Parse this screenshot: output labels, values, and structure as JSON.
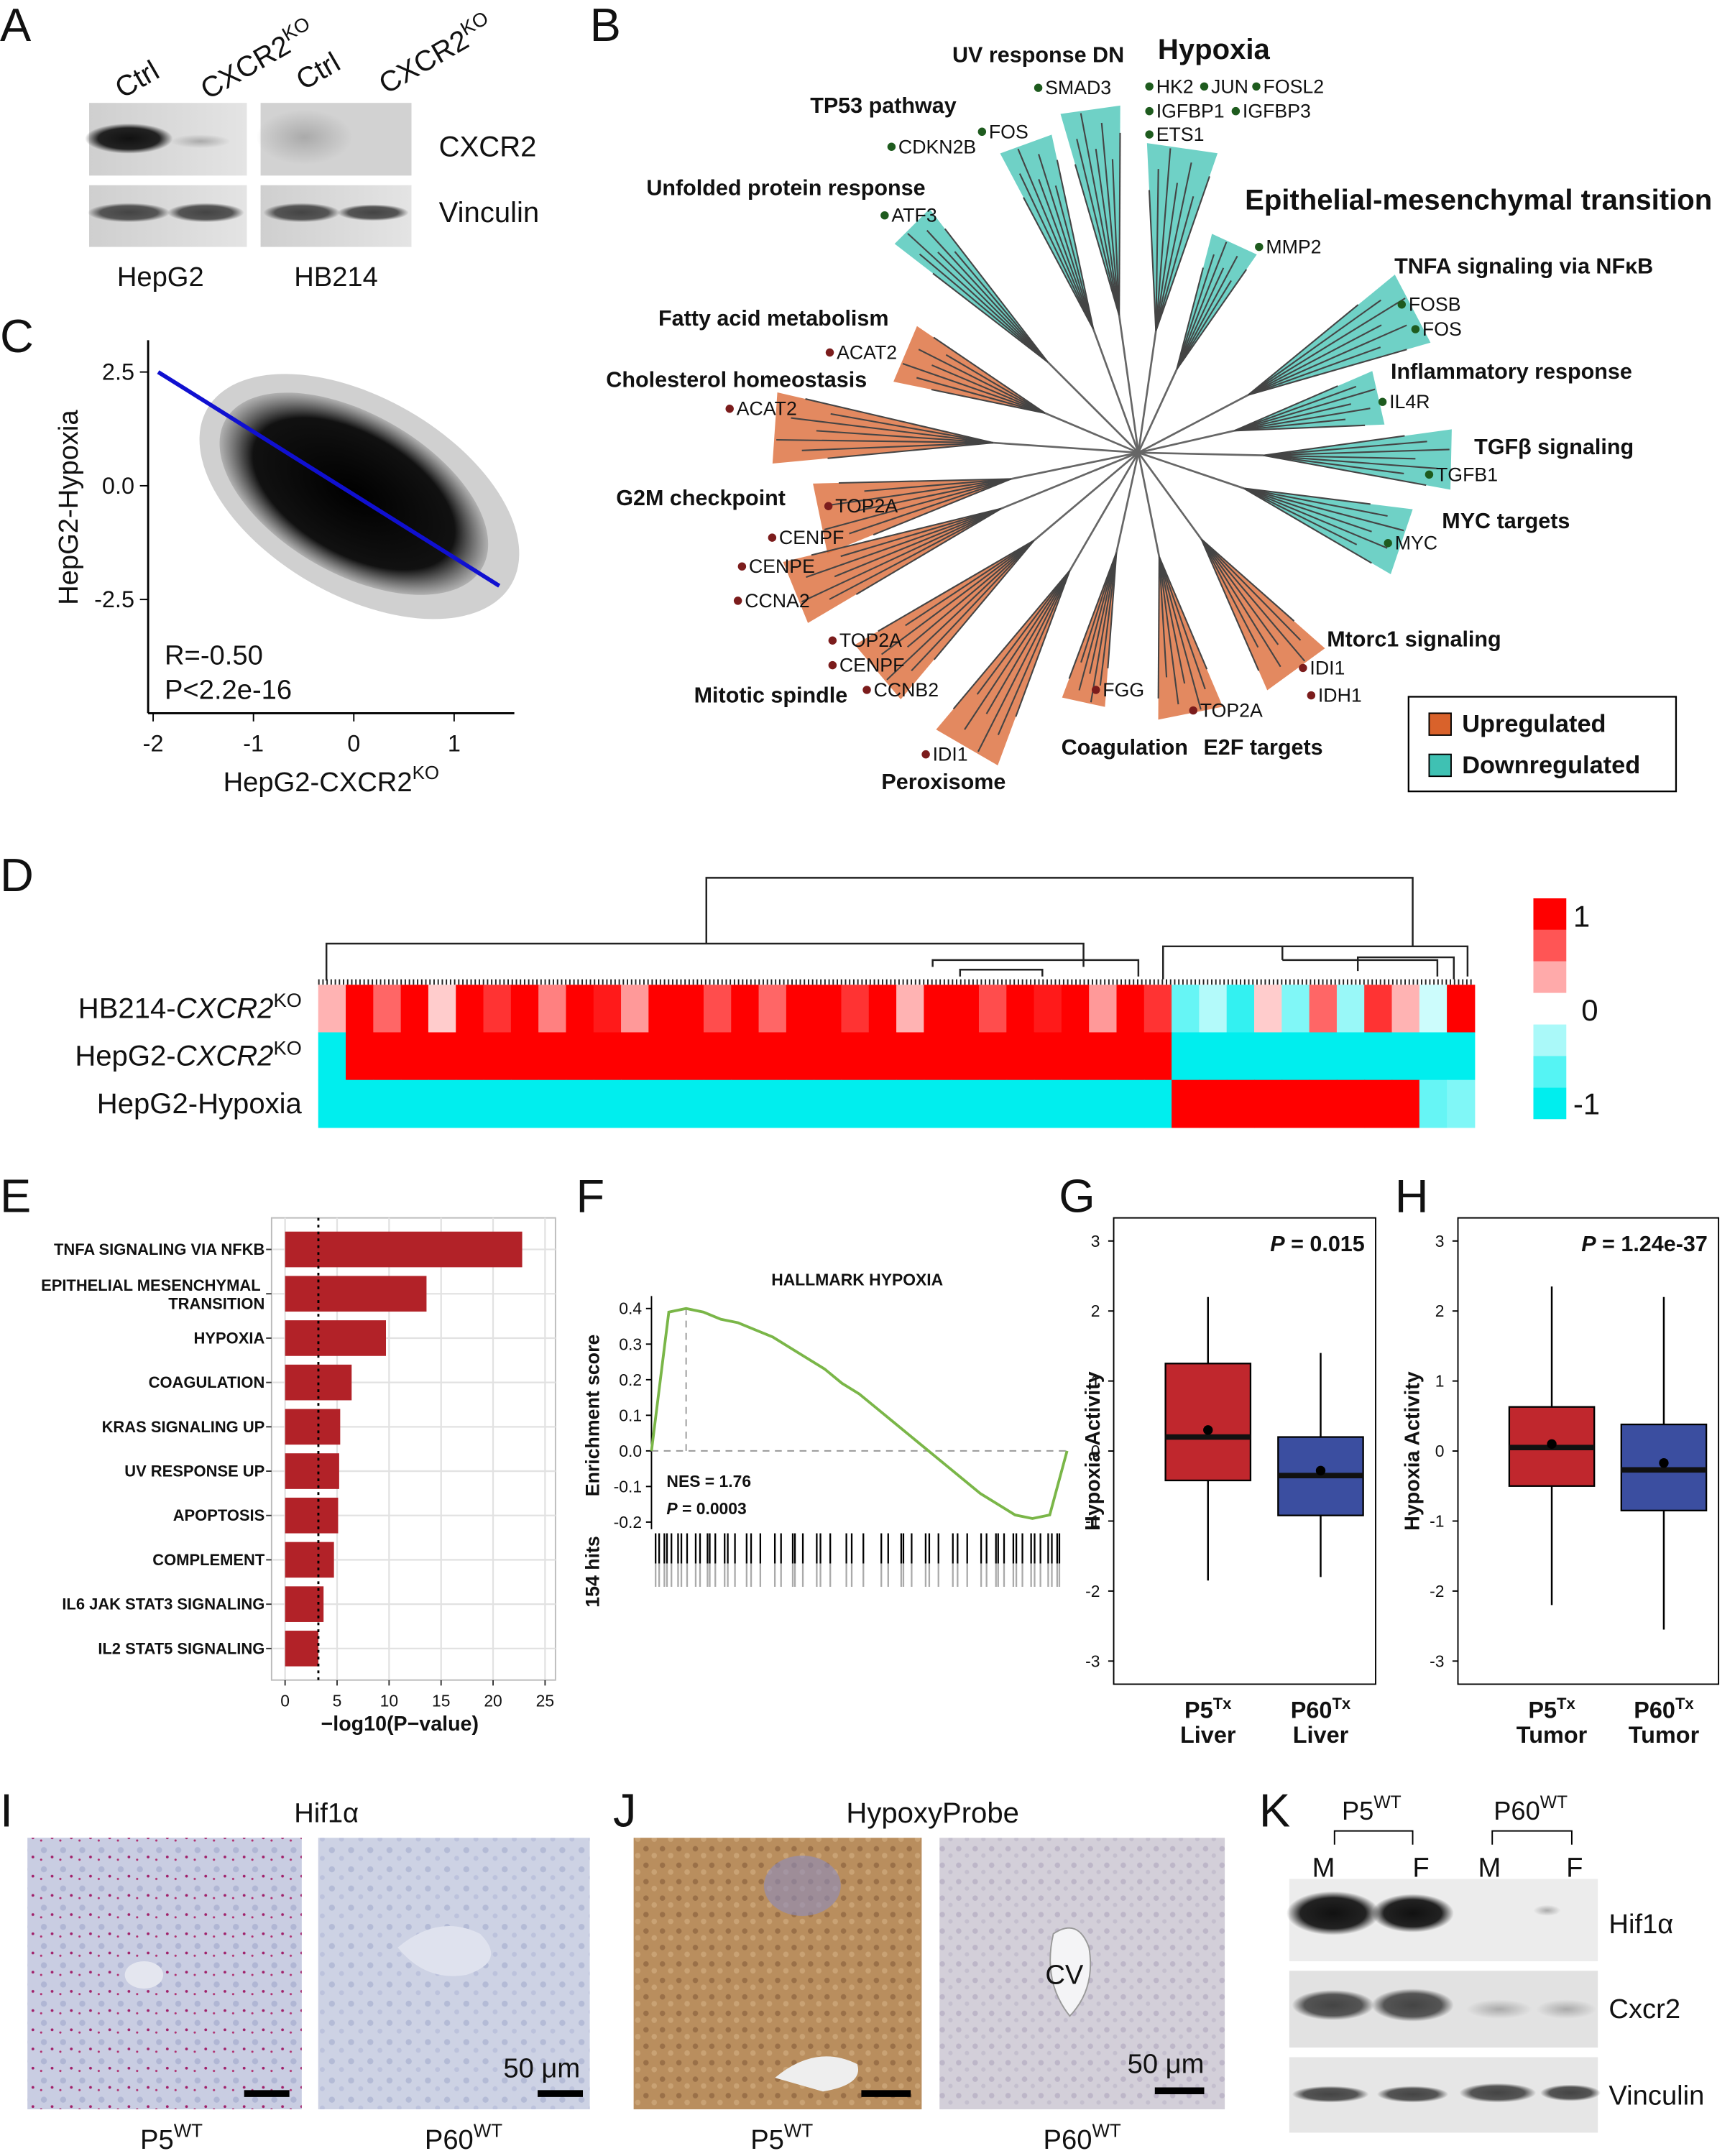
{
  "panels": {
    "A": {
      "label": "A",
      "lanes": [
        {
          "base": "Ctrl"
        },
        {
          "base": "CXCR2",
          "sup": "KO"
        },
        {
          "base": "Ctrl"
        },
        {
          "base": "CXCR2",
          "sup": "KO"
        }
      ],
      "proteins": [
        "CXCR2",
        "Vinculin"
      ],
      "cell_lines": [
        "HepG2",
        "HB214"
      ]
    },
    "B": {
      "label": "B",
      "downregulated_terms": [
        "UV response DN",
        "Hypoxia",
        "TP53 pathway",
        "Unfolded protein response",
        "Epithelial-mesenchymal transition",
        "TNFA signaling via NFκB",
        "Inflammatory response",
        "TGFβ signaling",
        "MYC targets"
      ],
      "upregulated_terms": [
        "Fatty acid metabolism",
        "Cholesterol homeostasis",
        "G2M checkpoint",
        "Mitotic spindle",
        "Peroxisome",
        "Coagulation",
        "E2F targets",
        "Mtorc1 signaling"
      ],
      "downregulated_genes": [
        "SMAD3",
        "FOS",
        "CDKN2B",
        "ATF3",
        "HK2",
        "JUN",
        "FOSL2",
        "IGFBP1",
        "IGFBP3",
        "ETS1",
        "MMP2",
        "FOSB",
        "FOS",
        "IL4R",
        "TGFB1",
        "MYC"
      ],
      "upregulated_genes": [
        "ACAT2",
        "ACAT2",
        "TOP2A",
        "CENPF",
        "CENPE",
        "CCNA2",
        "TOP2A",
        "CENPF",
        "CCNB2",
        "IDI1",
        "FGG",
        "TOP2A",
        "IDI1",
        "IDH1"
      ],
      "legend": [
        {
          "name": "Upregulated",
          "color": "#d9622b"
        },
        {
          "name": "Downregulated",
          "color": "#3fc1b3"
        }
      ]
    },
    "I": {
      "label": "I",
      "stain": "Hif1α",
      "samples": [
        {
          "base": "P5",
          "sup": "WT"
        },
        {
          "base": "P60",
          "sup": "WT"
        }
      ],
      "scale": "50 μm"
    },
    "J": {
      "label": "J",
      "stain": "HypoxyProbe",
      "structure": "CV",
      "samples": [
        {
          "base": "P5",
          "sup": "WT"
        },
        {
          "base": "P60",
          "sup": "WT"
        }
      ],
      "scale": "50 μm"
    },
    "K": {
      "label": "K",
      "groups": [
        {
          "base": "P5",
          "sup": "WT"
        },
        {
          "base": "P60",
          "sup": "WT"
        }
      ],
      "lanes": [
        "M",
        "F",
        "M",
        "F"
      ],
      "proteins": [
        "Hif1α",
        "Cxcr2",
        "Vinculin"
      ]
    }
  },
  "chart_data": [
    {
      "label": "C",
      "type": "scatter",
      "ylabel": "HepG2-Hypoxia",
      "xlabel": {
        "base": "HepG2-CXCR2",
        "sup": "KO"
      },
      "xlim": [
        -2.05,
        1.6
      ],
      "ylim": [
        -5,
        3.2
      ],
      "xticks": [
        -2,
        -1,
        0,
        1
      ],
      "yticks": [
        2.5,
        {
          "value": 0,
          "label": "0.0"
        },
        -2.5
      ],
      "annotations": [
        "R=-0.50",
        "P<2.2e-16"
      ],
      "fit_line": {
        "x": [
          -1.95,
          1.45
        ],
        "y": [
          2.5,
          -2.2
        ],
        "color": "#1010d0"
      }
    },
    {
      "label": "D",
      "type": "heatmap",
      "rows": [
        {
          "base": "HB214-",
          "italic": "CXCR2",
          "sup": "KO"
        },
        {
          "base": "HepG2-",
          "italic": "CXCR2",
          "sup": "KO"
        },
        {
          "base": "HepG2-Hypoxia"
        }
      ],
      "values": [
        [
          0.3,
          1,
          0.6,
          1,
          0.2,
          1,
          0.8,
          1,
          0.5,
          1,
          0.9,
          0.4,
          1,
          1,
          0.7,
          1,
          0.6,
          1,
          1,
          0.8,
          1,
          0.3,
          1,
          1,
          0.7,
          1,
          0.9,
          1,
          0.4,
          1,
          0.8,
          -0.6,
          -0.3,
          -0.8,
          0.2,
          -0.5,
          0.6,
          -0.4,
          0.8,
          0.3,
          -0.2,
          1
        ],
        [
          -1,
          1,
          1,
          1,
          1,
          1,
          1,
          1,
          1,
          1,
          1,
          1,
          1,
          1,
          1,
          1,
          1,
          1,
          1,
          1,
          1,
          1,
          1,
          1,
          1,
          1,
          1,
          1,
          1,
          1,
          1,
          -1,
          -1,
          -1,
          -1,
          -1,
          -1,
          -1,
          -1,
          -1,
          -1,
          -1
        ],
        [
          -1,
          -1,
          -1,
          -1,
          -1,
          -1,
          -1,
          -1,
          -1,
          -1,
          -1,
          -1,
          -1,
          -1,
          -1,
          -1,
          -1,
          -1,
          -1,
          -1,
          -1,
          -1,
          -1,
          -1,
          -1,
          -1,
          -1,
          -1,
          -1,
          -1,
          -1,
          1,
          1,
          1,
          1,
          1,
          1,
          1,
          1,
          1,
          -0.6,
          -0.5
        ]
      ],
      "zlim": [
        -1,
        1
      ],
      "colorbar_ticks": [
        1,
        0,
        -1
      ],
      "colors": {
        "high": "#ff0000",
        "mid": "#ffffff",
        "low": "#00eeee"
      }
    },
    {
      "label": "E",
      "type": "bar",
      "orientation": "horizontal",
      "categories": [
        "TNFA SIGNALING VIA NFKB",
        "EPITHELIAL MESENCHYMAL TRANSITION",
        "HYPOXIA",
        "COAGULATION",
        "KRAS SIGNALING UP",
        "UV RESPONSE UP",
        "APOPTOSIS",
        "COMPLEMENT",
        "IL6 JAK STAT3 SIGNALING",
        "IL2 STAT5 SIGNALING"
      ],
      "values": [
        22.8,
        13.6,
        9.7,
        6.4,
        5.3,
        5.2,
        5.1,
        4.7,
        3.7,
        3.2
      ],
      "color": "#b22228",
      "xlim": [
        -1.3,
        26
      ],
      "xticks": [
        0,
        5,
        10,
        15,
        20,
        25
      ],
      "xlabel": "−log10(P−value)",
      "reference_line": 3.2,
      "grid": true
    },
    {
      "label": "F",
      "type": "line",
      "title": "HALLMARK HYPOXIA",
      "ylabel": "Enrichment score",
      "hits_label": "154 hits",
      "values": [
        0,
        0.39,
        0.4,
        0.39,
        0.37,
        0.36,
        0.34,
        0.32,
        0.29,
        0.26,
        0.23,
        0.19,
        0.16,
        0.12,
        0.08,
        0.04,
        0,
        -0.04,
        -0.08,
        -0.12,
        -0.15,
        -0.18,
        -0.19,
        -0.18,
        0
      ],
      "color": "#7ab648",
      "ylim": [
        -0.22,
        0.435
      ],
      "yticks": [
        0.4,
        0.3,
        0.2,
        0.1,
        {
          "value": 0,
          "label": "0.0"
        },
        -0.1,
        -0.2
      ],
      "annotations": [
        "NES = 1.76",
        {
          "italic": "P",
          "base": " = 0.0003"
        }
      ]
    },
    {
      "label": "G",
      "type": "box",
      "ylabel": "Hypoxia Activity",
      "annotation": {
        "italic": "P",
        "base": " = 0.015"
      },
      "categories": [
        {
          "line1": {
            "base": "P5",
            "sup": "Tx"
          },
          "line2": "Liver"
        },
        {
          "line1": {
            "base": "P60",
            "sup": "Tx"
          },
          "line2": "Liver"
        }
      ],
      "boxes": [
        {
          "whislo": -1.85,
          "q1": -0.42,
          "med": 0.2,
          "mean": 0.3,
          "q3": 1.25,
          "whishi": 2.2,
          "color": "#c0272d"
        },
        {
          "whislo": -1.8,
          "q1": -0.92,
          "med": -0.35,
          "mean": -0.28,
          "q3": 0.2,
          "whishi": 1.4,
          "color": "#3b4ea0"
        }
      ],
      "ylim": [
        -3.33,
        3.33
      ],
      "yticks": [
        3,
        2,
        1,
        0,
        -1,
        -2,
        -3
      ]
    },
    {
      "label": "H",
      "type": "box",
      "ylabel": "Hypoxia Activity",
      "annotation": {
        "italic": "P",
        "base": " = 1.24e-37"
      },
      "categories": [
        {
          "line1": {
            "base": "P5",
            "sup": "Tx"
          },
          "line2": "Tumor"
        },
        {
          "line1": {
            "base": "P60",
            "sup": "Tx"
          },
          "line2": "Tumor"
        }
      ],
      "boxes": [
        {
          "whislo": -2.2,
          "q1": -0.5,
          "med": 0.05,
          "mean": 0.1,
          "q3": 0.63,
          "whishi": 2.35,
          "color": "#c0272d"
        },
        {
          "whislo": -2.55,
          "q1": -0.85,
          "med": -0.27,
          "mean": -0.17,
          "q3": 0.38,
          "whishi": 2.2,
          "color": "#3b4ea0"
        }
      ],
      "ylim": [
        -3.33,
        3.33
      ],
      "yticks": [
        3,
        2,
        1,
        0,
        -1,
        -2,
        -3
      ]
    }
  ]
}
